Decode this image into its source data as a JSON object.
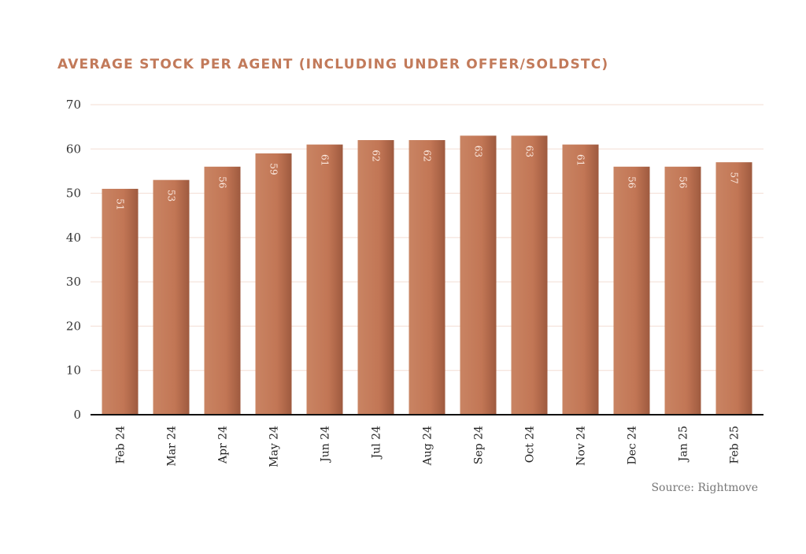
{
  "chart_data": {
    "type": "bar",
    "title": "AVERAGE STOCK PER AGENT (INCLUDING UNDER OFFER/SOLDSTC)",
    "categories": [
      "Feb 24",
      "Mar 24",
      "Apr 24",
      "May 24",
      "Jun 24",
      "Jul 24",
      "Aug 24",
      "Sep 24",
      "Oct 24",
      "Nov 24",
      "Dec 24",
      "Jan 25",
      "Feb 25"
    ],
    "values": [
      51,
      53,
      56,
      59,
      61,
      62,
      62,
      63,
      63,
      61,
      56,
      56,
      57
    ],
    "xlabel": "",
    "ylabel": "",
    "ylim": [
      0,
      70
    ],
    "yticks": [
      0,
      10,
      20,
      30,
      40,
      50,
      60,
      70
    ],
    "grid": true,
    "bar_color": "#c47a5a",
    "bar_color_dark": "#a05a3e",
    "data_labels": true,
    "source": "Source: Rightmove"
  }
}
